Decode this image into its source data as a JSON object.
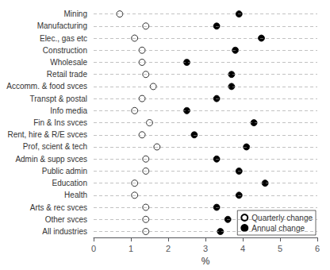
{
  "chart_data": {
    "type": "scatter",
    "orientation": "horizontal",
    "categories": [
      "Mining",
      "Manufacturing",
      "Elec., gas etc",
      "Construction",
      "Wholesale",
      "Retail trade",
      "Accomm. & food svces",
      "Transpt & postal",
      "Info media",
      "Fin & Ins svces",
      "Rent, hire & R/E svces",
      "Prof, scient & tech",
      "Admin & supp svces",
      "Public admin",
      "Education",
      "Health",
      "Arts & rec svces",
      "Other svces",
      "All industries"
    ],
    "series": [
      {
        "name": "Quarterly change",
        "color": "white",
        "values": [
          0.7,
          1.4,
          1.1,
          1.3,
          1.3,
          1.4,
          1.6,
          1.3,
          1.1,
          1.5,
          1.3,
          1.7,
          1.4,
          1.4,
          1.1,
          1.1,
          1.4,
          1.4,
          1.4
        ]
      },
      {
        "name": "Annual change",
        "color": "black",
        "values": [
          3.9,
          3.3,
          4.5,
          3.8,
          2.5,
          3.7,
          3.7,
          3.3,
          2.5,
          4.3,
          2.7,
          4.1,
          3.3,
          3.9,
          4.6,
          3.9,
          3.3,
          3.6,
          3.4
        ]
      }
    ],
    "xlabel": "%",
    "xlim": [
      0,
      6
    ],
    "xticks": [
      0,
      1,
      2,
      3,
      4,
      5,
      6
    ],
    "grid": true,
    "legend": "lower right"
  }
}
